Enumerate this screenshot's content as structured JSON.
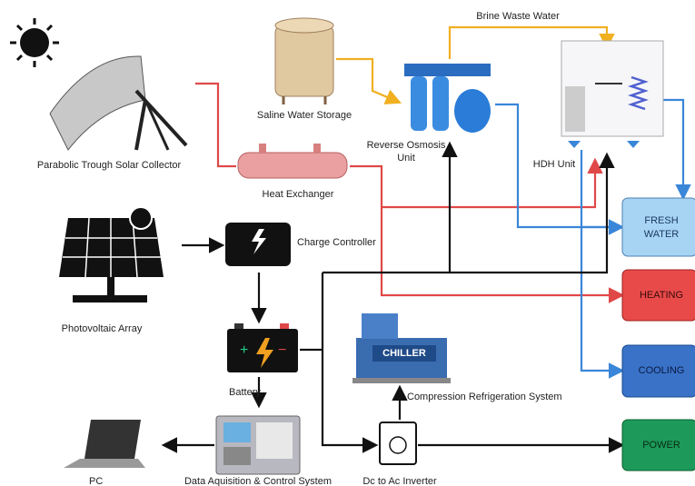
{
  "flow_label": "Brine Waste Water",
  "components": {
    "solar_collector": "Parabolic Trough Solar Collector",
    "storage": "Saline Water Storage",
    "ro_unit": [
      "Reverse Osmosis",
      "Unit"
    ],
    "hdh_unit": "HDH Unit",
    "heat_exchanger": "Heat Exchanger",
    "pv_array": "Photovoltaic Array",
    "charge_controller": "Charge Controller",
    "battery": "Battery",
    "chiller_badge": "CHILLER",
    "refrigeration": "Compression Refrigeration System",
    "pc": "PC",
    "daq": "Data Aquisition & Control System",
    "inverter": "Dc to Ac Inverter"
  },
  "outputs": [
    [
      "FRESH",
      "WATER"
    ],
    [
      "HEATING"
    ],
    [
      "COOLING"
    ],
    [
      "POWER"
    ]
  ]
}
